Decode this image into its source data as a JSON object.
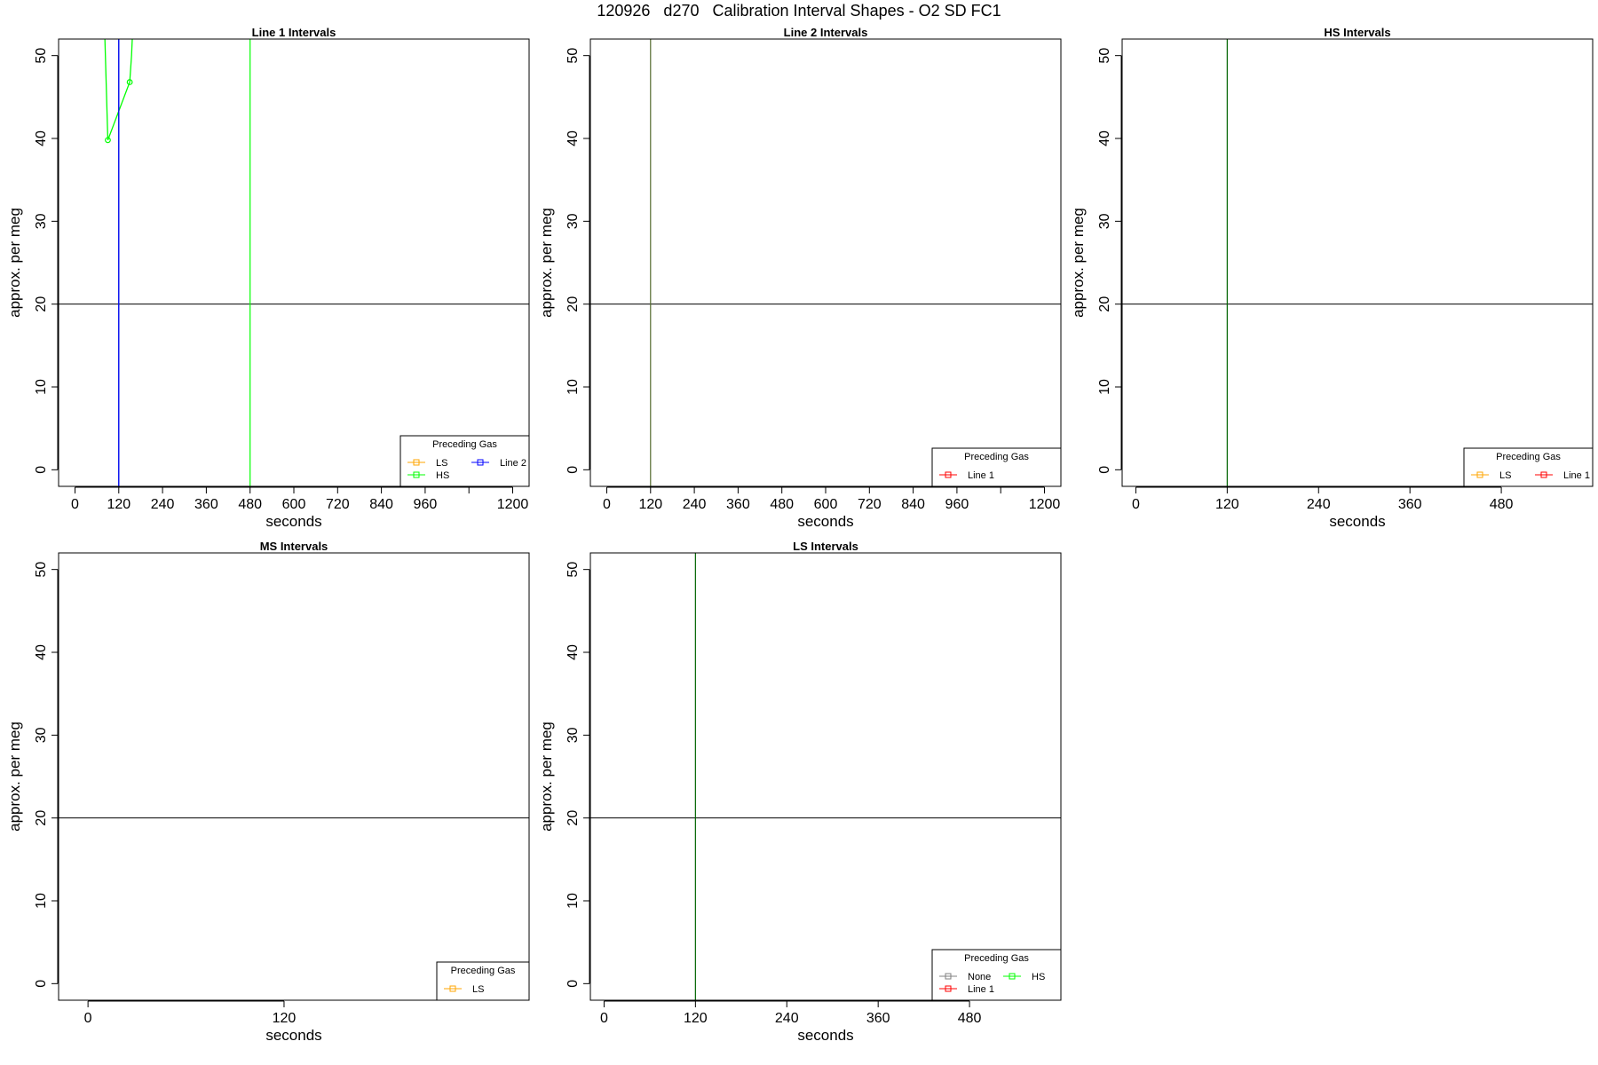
{
  "figure": {
    "suptitle": "120926   d270   Calibration Interval Shapes - O2 SD FC1"
  },
  "colors": {
    "LS": "#ffa500",
    "HS": "#00ff00",
    "Line 1": "#ff0000",
    "Line 2": "#0000ff",
    "None": "#808080",
    "ref_h": "#000000",
    "ref_v_main": "#006400"
  },
  "chart_data": [
    {
      "type": "line",
      "title": "Line 1 Intervals",
      "xlabel": "seconds",
      "ylabel": "approx. per meg",
      "xlim": [
        -45,
        1245
      ],
      "ylim": [
        -2,
        52
      ],
      "xticks": [
        0,
        120,
        240,
        360,
        480,
        600,
        720,
        840,
        960,
        1080,
        1200
      ],
      "xtick_labels": [
        "0",
        "120",
        "240",
        "360",
        "480",
        "600",
        "720",
        "840",
        "960",
        "",
        "1200"
      ],
      "yticks": [
        0,
        10,
        20,
        30,
        40,
        50
      ],
      "hline": 20,
      "vlines": [
        {
          "x": 120,
          "color": "#2e8b57"
        },
        {
          "x": 480,
          "color": "#00ff00"
        }
      ],
      "series": [
        {
          "name": "HS",
          "color": "#00ff00",
          "x": [
            80,
            90,
            150,
            155,
            160
          ],
          "y": [
            55,
            39.8,
            46.8,
            50,
            55
          ],
          "markers": [
            {
              "x": 90,
              "y": 39.8
            },
            {
              "x": 150,
              "y": 46.8
            }
          ]
        },
        {
          "name": "Line 2",
          "color": "#0000ff",
          "x": [
            120,
            120
          ],
          "y": [
            -2,
            52
          ],
          "markers": []
        }
      ],
      "legend": {
        "title": "Preceding Gas",
        "position": "bottom-right",
        "columns": [
          [
            "LS",
            "HS"
          ],
          [
            "Line 2"
          ]
        ]
      }
    },
    {
      "type": "line",
      "title": "Line 2 Intervals",
      "xlabel": "seconds",
      "ylabel": "approx. per meg",
      "xlim": [
        -45,
        1245
      ],
      "ylim": [
        -2,
        52
      ],
      "xticks": [
        0,
        120,
        240,
        360,
        480,
        600,
        720,
        840,
        960,
        1080,
        1200
      ],
      "xtick_labels": [
        "0",
        "120",
        "240",
        "360",
        "480",
        "600",
        "720",
        "840",
        "960",
        "",
        "1200"
      ],
      "yticks": [
        0,
        10,
        20,
        30,
        40,
        50
      ],
      "hline": 20,
      "vlines": [
        {
          "x": 120,
          "color": "#556b2f"
        }
      ],
      "series": [],
      "legend": {
        "title": "Preceding Gas",
        "position": "bottom-right",
        "columns": [
          [
            "Line 1"
          ]
        ]
      }
    },
    {
      "type": "line",
      "title": "HS Intervals",
      "xlabel": "seconds",
      "ylabel": "approx. per meg",
      "xlim": [
        -18,
        600
      ],
      "ylim": [
        -2,
        52
      ],
      "xticks": [
        0,
        120,
        240,
        360,
        480
      ],
      "xtick_labels": [
        "0",
        "120",
        "240",
        "360",
        "480"
      ],
      "yticks": [
        0,
        10,
        20,
        30,
        40,
        50
      ],
      "hline": 20,
      "vlines": [
        {
          "x": 120,
          "color": "#006400"
        }
      ],
      "series": [],
      "legend": {
        "title": "Preceding Gas",
        "position": "bottom-right",
        "columns": [
          [
            "LS"
          ],
          [
            "Line 1"
          ]
        ]
      }
    },
    {
      "type": "line",
      "title": "MS Intervals",
      "xlabel": "seconds",
      "ylabel": "approx. per meg",
      "xlim": [
        -18,
        270
      ],
      "ylim": [
        -2,
        52
      ],
      "xticks": [
        0,
        120
      ],
      "xtick_labels": [
        "0",
        "120"
      ],
      "yticks": [
        0,
        10,
        20,
        30,
        40,
        50
      ],
      "hline": 20,
      "vlines": [],
      "series": [],
      "legend": {
        "title": "Preceding Gas",
        "position": "bottom-right",
        "columns": [
          [
            "LS"
          ]
        ]
      }
    },
    {
      "type": "line",
      "title": "LS Intervals",
      "xlabel": "seconds",
      "ylabel": "approx. per meg",
      "xlim": [
        -18,
        600
      ],
      "ylim": [
        -2,
        52
      ],
      "xticks": [
        0,
        120,
        240,
        360,
        480
      ],
      "xtick_labels": [
        "0",
        "120",
        "240",
        "360",
        "480"
      ],
      "yticks": [
        0,
        10,
        20,
        30,
        40,
        50
      ],
      "hline": 20,
      "vlines": [
        {
          "x": 120,
          "color": "#006400"
        }
      ],
      "series": [],
      "legend": {
        "title": "Preceding Gas",
        "position": "bottom-right",
        "columns": [
          [
            "None",
            "Line 1"
          ],
          [
            "HS"
          ]
        ]
      }
    }
  ]
}
